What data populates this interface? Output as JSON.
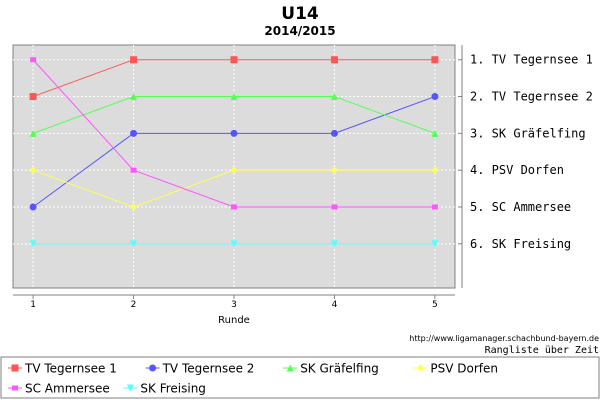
{
  "chart_data": {
    "type": "line",
    "title": "U14",
    "subtitle": "2014/2015",
    "xlabel": "Runde",
    "x": [
      1,
      2,
      3,
      4,
      5
    ],
    "xlim": [
      0.8,
      5.2
    ],
    "ylim": [
      0.6,
      7.2
    ],
    "y_inverted": true,
    "grid": true,
    "right_axis_labels": [
      "1. TV Tegernsee 1",
      "2. TV Tegernsee 2",
      "3. SK Gräfelfing",
      "4. PSV Dorfen",
      "5. SC Ammersee",
      "6. SK Freising"
    ],
    "series": [
      {
        "name": "TV Tegernsee 1",
        "values": [
          2,
          1,
          1,
          1,
          1
        ],
        "color": "#ff5555",
        "marker": "square"
      },
      {
        "name": "TV Tegernsee 2",
        "values": [
          5,
          3,
          3,
          3,
          2
        ],
        "color": "#5555ff",
        "marker": "circle"
      },
      {
        "name": "SK Gräfelfing",
        "values": [
          3,
          2,
          2,
          2,
          3
        ],
        "color": "#55ff55",
        "marker": "triangle-up"
      },
      {
        "name": "PSV Dorfen",
        "values": [
          4,
          5,
          4,
          4,
          4
        ],
        "color": "#ffff55",
        "marker": "diamond"
      },
      {
        "name": "SC Ammersee",
        "values": [
          1,
          4,
          5,
          5,
          5
        ],
        "color": "#ff55ff",
        "marker": "square-small"
      },
      {
        "name": "SK Freising",
        "values": [
          6,
          6,
          6,
          6,
          6
        ],
        "color": "#55ffff",
        "marker": "triangle-down"
      }
    ],
    "legend_position": "bottom",
    "colors": {
      "plot_background": "#dcdcdc",
      "grid": "#ffffff",
      "axis": "#808080"
    }
  },
  "source_url": "http://www.ligamanager.schachbund-bayern.de",
  "source_caption": "Rangliste über Zeit"
}
